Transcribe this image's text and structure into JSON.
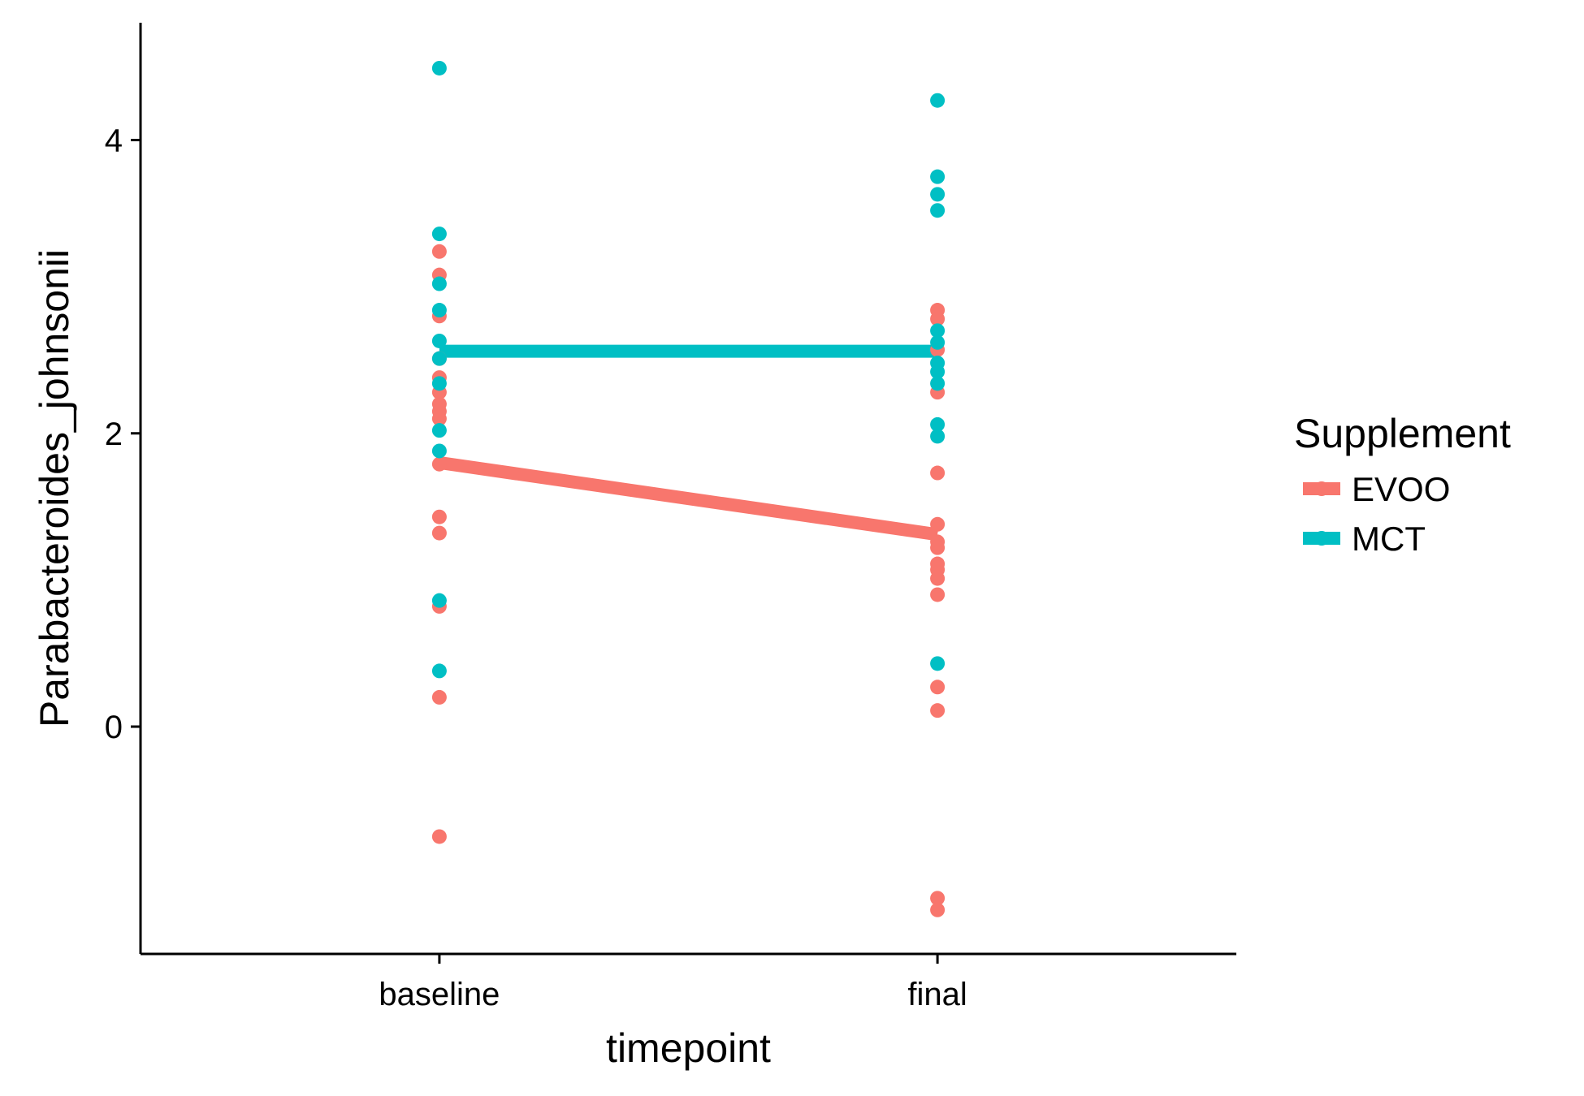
{
  "chart_data": {
    "type": "scatter",
    "title": "",
    "xlabel": "timepoint",
    "ylabel": "Parabacteroides_johnsonii",
    "categories": [
      "baseline",
      "final"
    ],
    "ylim": [
      -1.55,
      4.8
    ],
    "y_ticks": [
      0,
      2,
      4
    ],
    "grid": false,
    "legend_position": "right",
    "legend": {
      "title": "Supplement"
    },
    "series": [
      {
        "name": "EVOO",
        "color": "#F8766D",
        "mean_line": [
          1.8,
          1.31
        ],
        "points": {
          "baseline": [
            3.24,
            3.08,
            2.8,
            2.51,
            2.38,
            2.28,
            2.2,
            2.15,
            2.1,
            1.79,
            1.43,
            1.32,
            0.82,
            0.2,
            -0.75
          ],
          "final": [
            2.84,
            2.78,
            2.57,
            2.28,
            1.73,
            1.38,
            1.26,
            1.22,
            1.11,
            1.07,
            1.01,
            0.9,
            0.27,
            0.11,
            -1.17,
            -1.25
          ]
        }
      },
      {
        "name": "MCT",
        "color": "#00BFC4",
        "mean_line": [
          2.56,
          2.56
        ],
        "points": {
          "baseline": [
            4.49,
            3.36,
            3.02,
            2.84,
            2.63,
            2.51,
            2.34,
            2.02,
            1.88,
            0.86,
            0.38
          ],
          "final": [
            4.27,
            3.75,
            3.63,
            3.52,
            2.7,
            2.62,
            2.48,
            2.42,
            2.34,
            2.06,
            1.98,
            0.43
          ]
        }
      }
    ]
  }
}
